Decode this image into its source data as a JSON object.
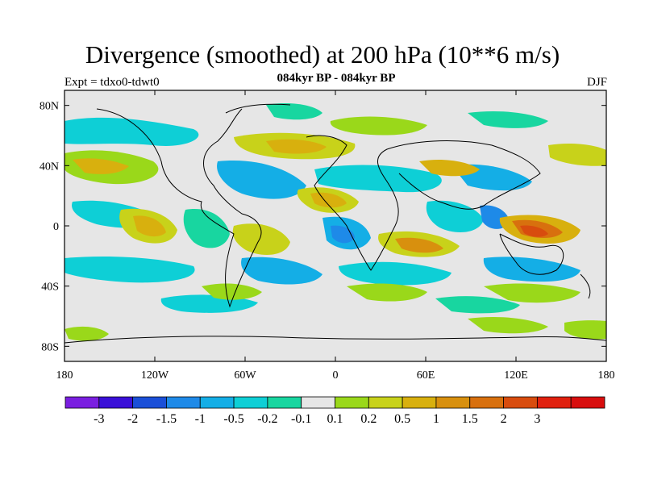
{
  "header": {
    "title": "Divergence (smoothed) at 200 hPa (10**6 m/s)",
    "subtitle": "084kyr BP - 084kyr BP",
    "left_label": "Expt = tdxo0-tdwt0",
    "right_label": "DJF"
  },
  "map": {
    "lon_range": [
      -180,
      180
    ],
    "lat_range": [
      -90,
      90
    ],
    "lon_ticks": [
      {
        "lon": -180,
        "label": "180"
      },
      {
        "lon": -120,
        "label": "120W"
      },
      {
        "lon": -60,
        "label": "60W"
      },
      {
        "lon": 0,
        "label": "0"
      },
      {
        "lon": 60,
        "label": "60E"
      },
      {
        "lon": 120,
        "label": "120E"
      },
      {
        "lon": 180,
        "label": "180"
      }
    ],
    "lat_ticks": [
      {
        "lat": 80,
        "label": "80N"
      },
      {
        "lat": 40,
        "label": "40N"
      },
      {
        "lat": 0,
        "label": "0"
      },
      {
        "lat": -40,
        "label": "40S"
      },
      {
        "lat": -80,
        "label": "80S"
      }
    ],
    "background_color": "#e6e6e6"
  },
  "colorbar": {
    "colors": [
      "#7a1ee0",
      "#3a10d8",
      "#1a4fd8",
      "#1e8ae8",
      "#14aee6",
      "#0ecfd6",
      "#18d6a0",
      "#e6e6e6",
      "#9ad81a",
      "#c8d21a",
      "#d8b00e",
      "#d8900e",
      "#d8700e",
      "#d84c0e",
      "#e0200e",
      "#d80e0e"
    ],
    "labels": [
      "-3",
      "-2",
      "-1.5",
      "-1",
      "-0.5",
      "-0.2",
      "-0.1",
      "0.1",
      "0.2",
      "0.5",
      "1",
      "1.5",
      "2",
      "3"
    ]
  }
}
